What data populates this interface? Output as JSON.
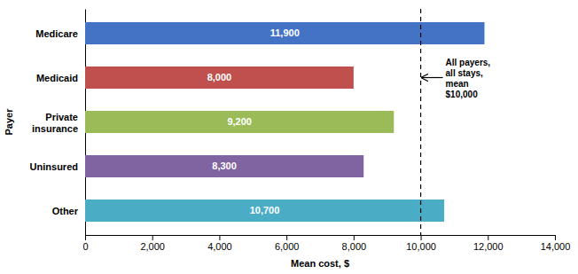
{
  "chart_data": {
    "type": "bar",
    "orientation": "horizontal",
    "categories": [
      "Medicare",
      "Medicaid",
      "Private\ninsurance",
      "Uninsured",
      "Other"
    ],
    "values": [
      11900,
      8000,
      9200,
      8300,
      10700
    ],
    "value_labels": [
      "11,900",
      "8,000",
      "9,200",
      "8,300",
      "10,700"
    ],
    "data_labels": true,
    "colors": [
      "#4472C4",
      "#C0504D",
      "#9BBB59",
      "#8064A2",
      "#4BACC6"
    ],
    "xlabel": "Mean cost, $",
    "ylabel": "Payer",
    "xlim": [
      0,
      14000
    ],
    "xticks": [
      0,
      {
        "value": 2000,
        "label": "2,000"
      },
      {
        "value": 4000,
        "label": "4,000"
      },
      {
        "value": 6000,
        "label": "6,000"
      },
      {
        "value": 8000,
        "label": "8,000"
      },
      {
        "value": 10000,
        "label": "10,000"
      },
      {
        "value": 12000,
        "label": "12,000"
      },
      {
        "value": 14000,
        "label": "14,000"
      }
    ],
    "grid": false,
    "annotations": [
      {
        "text": "All payers,\nall stays,\nmean\n$10,000",
        "x": 10000,
        "line_style": "dashed"
      }
    ]
  }
}
